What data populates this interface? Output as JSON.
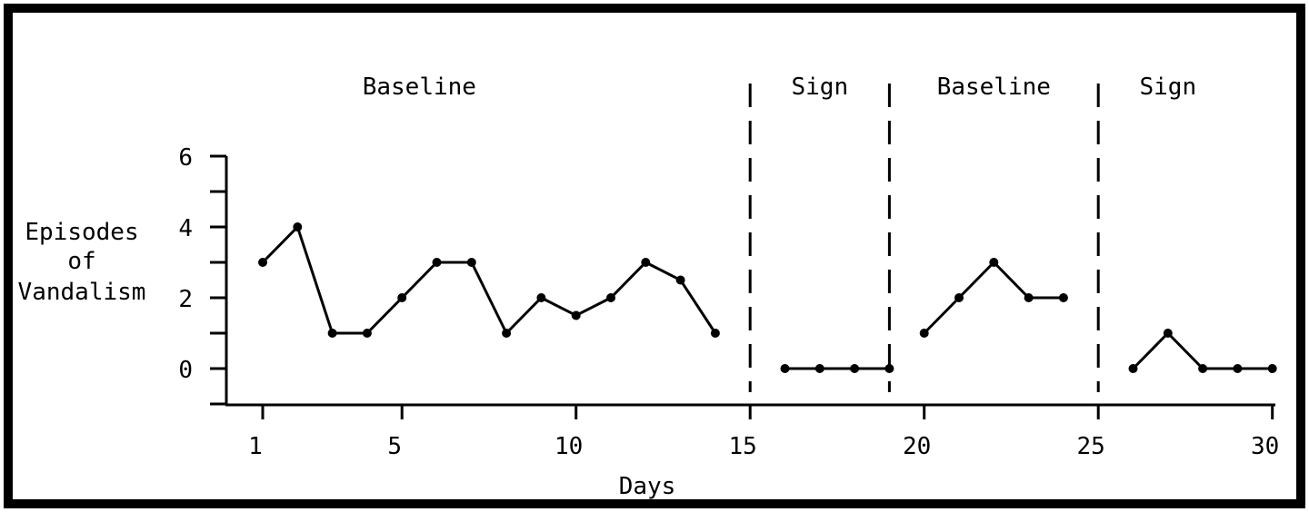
{
  "chart_data": {
    "type": "line",
    "title": "",
    "xlabel": "Days",
    "ylabel_lines": [
      "Episodes",
      "of",
      "Vandalism"
    ],
    "xlim": [
      1,
      30
    ],
    "ylim": [
      0,
      6
    ],
    "x_ticks": [
      1,
      5,
      10,
      15,
      20,
      25,
      30
    ],
    "y_ticks": [
      0,
      2,
      4,
      6
    ],
    "y_minor_ticks": [
      -1,
      1,
      3,
      5
    ],
    "phase_boundaries": [
      15,
      19,
      25
    ],
    "phases": [
      {
        "label": "Baseline",
        "x_center": 5.5
      },
      {
        "label": "Sign",
        "x_center": 17
      },
      {
        "label": "Baseline",
        "x_center": 22
      },
      {
        "label": "Sign",
        "x_center": 27
      }
    ],
    "segments": [
      {
        "x": [
          1,
          2,
          3,
          4,
          5,
          6,
          7,
          8,
          9,
          10,
          11,
          12,
          13,
          14
        ],
        "y": [
          3,
          4,
          1,
          1,
          2,
          3,
          3,
          1,
          2,
          1.5,
          2,
          3,
          2.5,
          1
        ]
      },
      {
        "x": [
          16,
          17,
          18,
          19
        ],
        "y": [
          0,
          0,
          0,
          0
        ]
      },
      {
        "x": [
          20,
          21,
          22,
          23,
          24
        ],
        "y": [
          1,
          2,
          3,
          2,
          2
        ]
      },
      {
        "x": [
          26,
          27,
          28,
          29,
          30
        ],
        "y": [
          0,
          1,
          0,
          0,
          0
        ]
      }
    ],
    "grid": false,
    "legend": "none"
  }
}
